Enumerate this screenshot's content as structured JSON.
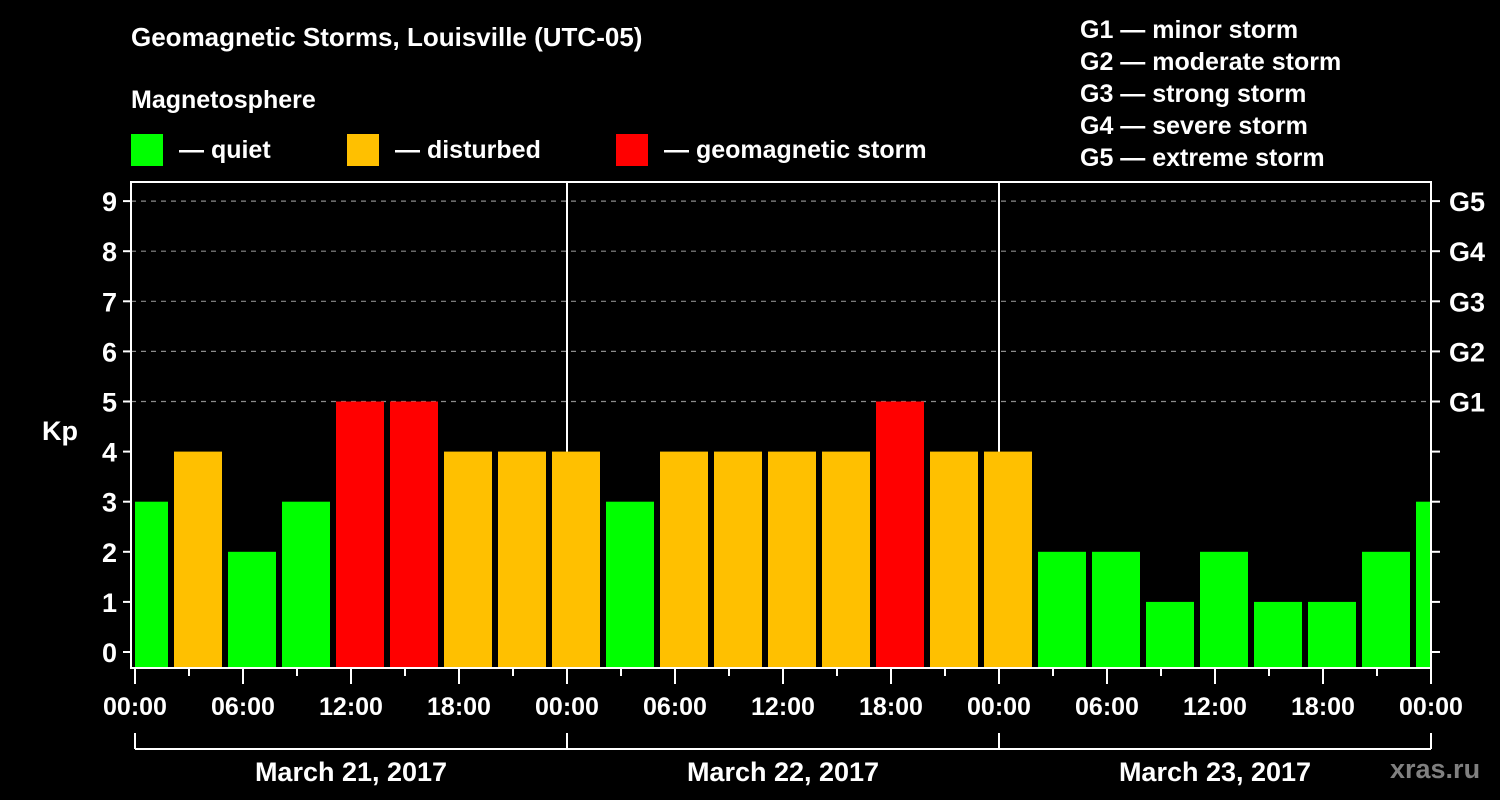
{
  "header": {
    "title": "Geomagnetic Storms, Louisville (UTC-05)",
    "subtitle": "Magnetosphere"
  },
  "legend": [
    {
      "label": "— quiet",
      "color": "#00ff00"
    },
    {
      "label": "— disturbed",
      "color": "#ffc000"
    },
    {
      "label": "— geomagnetic storm",
      "color": "#ff0000"
    }
  ],
  "g_scale": [
    "G1 — minor storm",
    "G2 — moderate storm",
    "G3 — strong storm",
    "G4 — severe storm",
    "G5 — extreme storm"
  ],
  "watermark": "xras.ru",
  "chart_data": {
    "type": "bar",
    "title": "Geomagnetic Storms, Louisville (UTC-05)",
    "xlabel": "",
    "ylabel": "Kp",
    "ylim": [
      0,
      9
    ],
    "yticks": [
      0,
      1,
      2,
      3,
      4,
      5,
      6,
      7,
      8,
      9
    ],
    "right_axis_labels": [
      {
        "kp": 5,
        "label": "G1"
      },
      {
        "kp": 6,
        "label": "G2"
      },
      {
        "kp": 7,
        "label": "G3"
      },
      {
        "kp": 8,
        "label": "G4"
      },
      {
        "kp": 9,
        "label": "G5"
      }
    ],
    "grid": "dashed horizontal at Kp 5-9",
    "x_tick_labels": [
      "00:00",
      "06:00",
      "12:00",
      "18:00",
      "00:00",
      "06:00",
      "12:00",
      "18:00",
      "00:00",
      "06:00",
      "12:00",
      "18:00",
      "00:00"
    ],
    "date_labels": [
      "March 21, 2017",
      "March 22, 2017",
      "March 23, 2017"
    ],
    "interval_hours": 3,
    "categories": [
      "Mar21 -01:00",
      "Mar21 02:00",
      "Mar21 05:00",
      "Mar21 08:00",
      "Mar21 11:00",
      "Mar21 14:00",
      "Mar21 17:00",
      "Mar21 20:00",
      "Mar21 23:00",
      "Mar22 02:00",
      "Mar22 05:00",
      "Mar22 08:00",
      "Mar22 11:00",
      "Mar22 14:00",
      "Mar22 17:00",
      "Mar22 20:00",
      "Mar22 23:00",
      "Mar23 02:00",
      "Mar23 05:00",
      "Mar23 08:00",
      "Mar23 11:00",
      "Mar23 14:00",
      "Mar23 17:00",
      "Mar23 20:00",
      "Mar23 23:00"
    ],
    "values": [
      3,
      4,
      2,
      3,
      5,
      5,
      4,
      4,
      4,
      3,
      4,
      4,
      4,
      4,
      5,
      4,
      4,
      2,
      2,
      1,
      2,
      1,
      1,
      2,
      3
    ],
    "status": [
      "quiet",
      "disturbed",
      "quiet",
      "quiet",
      "storm",
      "storm",
      "disturbed",
      "disturbed",
      "disturbed",
      "quiet",
      "disturbed",
      "disturbed",
      "disturbed",
      "disturbed",
      "storm",
      "disturbed",
      "disturbed",
      "quiet",
      "quiet",
      "quiet",
      "quiet",
      "quiet",
      "quiet",
      "quiet",
      "quiet"
    ],
    "colors": {
      "quiet": "#00ff00",
      "disturbed": "#ffc000",
      "storm": "#ff0000"
    },
    "legend_position": "top"
  }
}
